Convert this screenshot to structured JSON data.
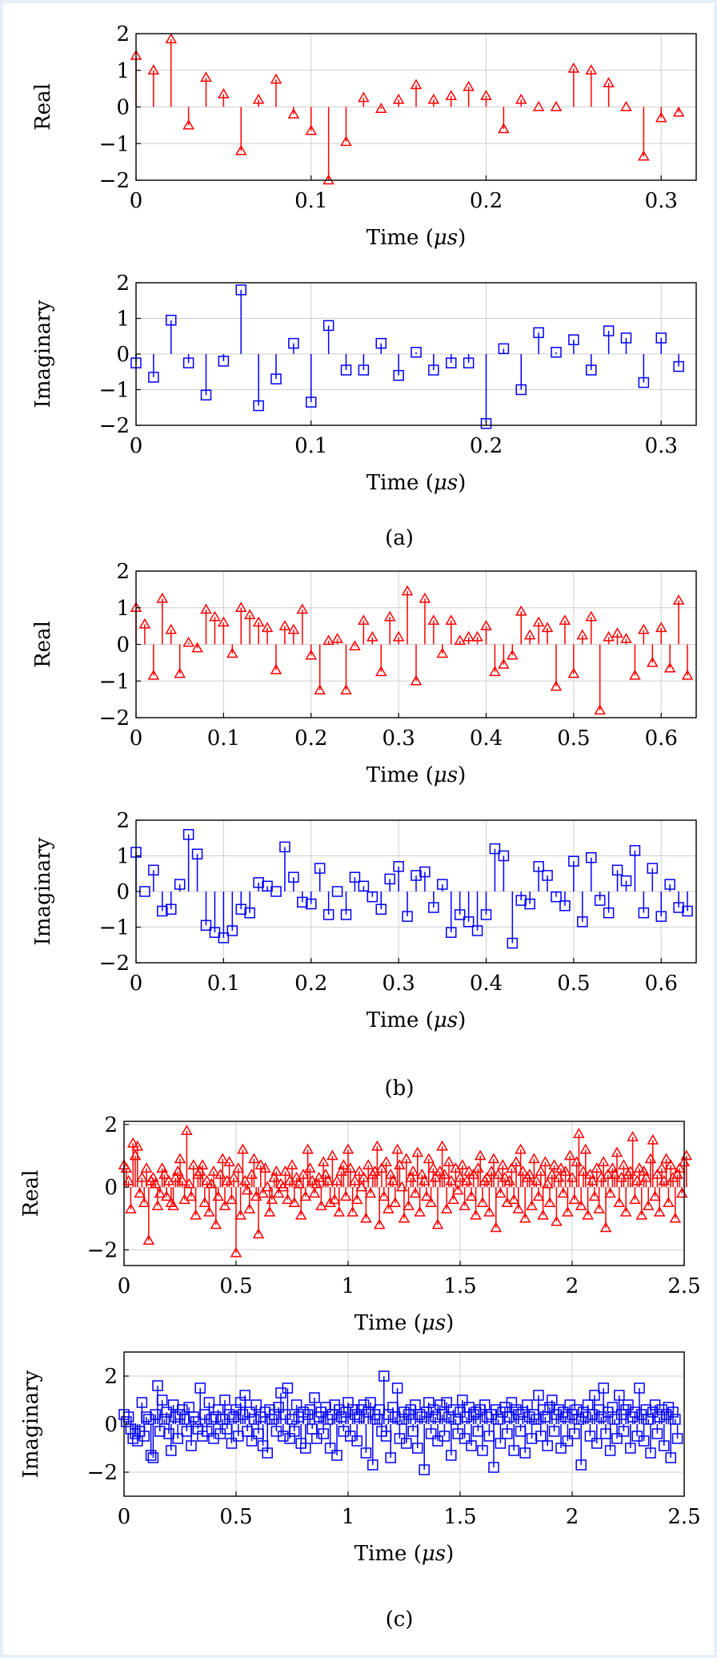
{
  "colors": {
    "real": "#ff0000",
    "imag": "#0000ff",
    "grid": "#cfcfcf"
  },
  "chart_data": [
    {
      "type": "stem",
      "panel": "a",
      "title": "",
      "xlabel": "Time (μs)",
      "xlabel_prefix": "Time (",
      "xlabel_unit": "μs",
      "xlabel_suffix": ")",
      "ylabel": "Real",
      "marker": "triangle",
      "color": "#ff0000",
      "xlim": [
        0,
        0.32
      ],
      "ylim": [
        -2,
        2
      ],
      "xticks": [
        0,
        0.1,
        0.2,
        0.3
      ],
      "xtick_labels": [
        "0",
        "0.1",
        "0.2",
        "0.3"
      ],
      "yticks": [
        -2,
        -1,
        0,
        1,
        2
      ],
      "ytick_labels": [
        "−2",
        "−1",
        "0",
        "1",
        "2"
      ],
      "dt": 0.01,
      "values": [
        1.4,
        1.0,
        1.85,
        -0.5,
        0.8,
        0.35,
        -1.2,
        0.2,
        0.75,
        -0.2,
        -0.65,
        -2.0,
        -0.95,
        0.25,
        -0.05,
        0.2,
        0.6,
        0.2,
        0.3,
        0.55,
        0.3,
        -0.6,
        0.2,
        0.0,
        0.0,
        1.05,
        1.0,
        0.65,
        0.0,
        -1.35,
        -0.3,
        -0.15
      ]
    },
    {
      "type": "stem",
      "panel": "a",
      "title": "",
      "xlabel": "Time (μs)",
      "xlabel_prefix": "Time (",
      "xlabel_unit": "μs",
      "xlabel_suffix": ")",
      "ylabel": "Imaginary",
      "marker": "square",
      "color": "#0000ff",
      "xlim": [
        0,
        0.32
      ],
      "ylim": [
        -2,
        2
      ],
      "xticks": [
        0,
        0.1,
        0.2,
        0.3
      ],
      "xtick_labels": [
        "0",
        "0.1",
        "0.2",
        "0.3"
      ],
      "yticks": [
        -2,
        -1,
        0,
        1,
        2
      ],
      "ytick_labels": [
        "−2",
        "−1",
        "0",
        "1",
        "2"
      ],
      "dt": 0.01,
      "values": [
        -0.25,
        -0.65,
        0.95,
        -0.25,
        -1.15,
        -0.2,
        1.8,
        -1.45,
        -0.7,
        0.3,
        -1.35,
        0.8,
        -0.45,
        -0.45,
        0.3,
        -0.6,
        0.05,
        -0.45,
        -0.25,
        -0.25,
        -1.95,
        0.15,
        -1.0,
        0.6,
        0.05,
        0.4,
        -0.45,
        0.65,
        0.45,
        -0.8,
        0.45,
        -0.35
      ]
    },
    {
      "type": "stem",
      "panel": "b",
      "title": "",
      "xlabel": "Time (μs)",
      "xlabel_prefix": "Time (",
      "xlabel_unit": "μs",
      "xlabel_suffix": ")",
      "ylabel": "Real",
      "marker": "triangle",
      "color": "#ff0000",
      "xlim": [
        0,
        0.64
      ],
      "ylim": [
        -2,
        2
      ],
      "xticks": [
        0,
        0.1,
        0.2,
        0.3,
        0.4,
        0.5,
        0.6
      ],
      "xtick_labels": [
        "0",
        "0.1",
        "0.2",
        "0.3",
        "0.4",
        "0.5",
        "0.6"
      ],
      "yticks": [
        -2,
        -1,
        0,
        1,
        2
      ],
      "ytick_labels": [
        "−2",
        "−1",
        "0",
        "1",
        "2"
      ],
      "dt": 0.01,
      "values": [
        1.0,
        0.55,
        -0.85,
        1.25,
        0.4,
        -0.8,
        0.05,
        -0.1,
        0.95,
        0.75,
        0.6,
        -0.25,
        1.0,
        0.8,
        0.6,
        0.45,
        -0.7,
        0.5,
        0.4,
        0.95,
        -0.3,
        -1.25,
        0.1,
        0.15,
        -1.25,
        -0.05,
        0.65,
        0.2,
        -0.75,
        0.75,
        0.2,
        1.45,
        -1.0,
        1.25,
        0.65,
        -0.25,
        0.65,
        0.1,
        0.2,
        0.2,
        0.5,
        -0.75,
        -0.55,
        -0.3,
        0.9,
        0.25,
        0.6,
        0.45,
        -1.15,
        0.65,
        -0.8,
        0.25,
        0.75,
        -1.8,
        0.2,
        0.3,
        0.15,
        -0.85,
        0.4,
        -0.5,
        0.45,
        -0.65,
        1.2,
        -0.85
      ]
    },
    {
      "type": "stem",
      "panel": "b",
      "title": "",
      "xlabel": "Time (μs)",
      "xlabel_prefix": "Time (",
      "xlabel_unit": "μs",
      "xlabel_suffix": ")",
      "ylabel": "Imaginary",
      "marker": "square",
      "color": "#0000ff",
      "xlim": [
        0,
        0.64
      ],
      "ylim": [
        -2,
        2
      ],
      "xticks": [
        0,
        0.1,
        0.2,
        0.3,
        0.4,
        0.5,
        0.6
      ],
      "xtick_labels": [
        "0",
        "0.1",
        "0.2",
        "0.3",
        "0.4",
        "0.5",
        "0.6"
      ],
      "yticks": [
        -2,
        -1,
        0,
        1,
        2
      ],
      "ytick_labels": [
        "−2",
        "−1",
        "0",
        "1",
        "2"
      ],
      "dt": 0.01,
      "values": [
        1.1,
        0.0,
        0.6,
        -0.55,
        -0.5,
        0.2,
        1.6,
        1.05,
        -0.95,
        -1.15,
        -1.3,
        -1.1,
        -0.5,
        -0.6,
        0.25,
        0.15,
        0.0,
        1.25,
        0.4,
        -0.3,
        -0.35,
        0.65,
        -0.65,
        0.0,
        -0.65,
        0.4,
        0.15,
        -0.15,
        -0.5,
        0.35,
        0.7,
        -0.7,
        0.45,
        0.55,
        -0.45,
        0.2,
        -1.15,
        -0.65,
        -0.85,
        -1.1,
        -0.65,
        1.2,
        1.0,
        -1.45,
        -0.25,
        -0.35,
        0.7,
        0.45,
        -0.15,
        -0.4,
        0.85,
        -0.85,
        0.95,
        -0.25,
        -0.6,
        0.6,
        0.3,
        1.15,
        -0.6,
        0.65,
        -0.7,
        0.2,
        -0.45,
        -0.55
      ]
    },
    {
      "type": "stem",
      "panel": "c",
      "title": "",
      "xlabel": "Time (μs)",
      "xlabel_prefix": "Time (",
      "xlabel_unit": "μs",
      "xlabel_suffix": ")",
      "ylabel": "Real",
      "marker": "triangle",
      "color": "#ff0000",
      "xlim": [
        0,
        2.5
      ],
      "ylim": [
        -2.5,
        2.1
      ],
      "xticks": [
        0,
        0.5,
        1,
        1.5,
        2,
        2.5
      ],
      "xtick_labels": [
        "0",
        "0.5",
        "1",
        "1.5",
        "2",
        "2.5"
      ],
      "yticks": [
        -2,
        0,
        2
      ],
      "ytick_labels": [
        "−2",
        "0",
        "2"
      ],
      "dt": 0.01,
      "values": [
        0.7,
        0.6,
        0.2,
        -0.7,
        1.4,
        1.0,
        1.3,
        -0.2,
        0.3,
        -0.5,
        0.6,
        -1.7,
        0.2,
        0.3,
        0.1,
        -0.6,
        -0.2,
        0.6,
        0.4,
        -0.3,
        0.2,
        -0.5,
        -0.6,
        0.3,
        0.5,
        0.9,
        0.2,
        -0.4,
        1.8,
        0.1,
        -0.3,
        0.7,
        -0.9,
        0.4,
        0.5,
        0.7,
        -0.5,
        0.2,
        -0.8,
        0.1,
        0.5,
        -1.2,
        -0.3,
        0.4,
        0.9,
        -0.6,
        0.2,
        0.8,
        -0.4,
        0.3,
        -2.1,
        0.6,
        -0.9,
        1.2,
        0.2,
        -0.1,
        -0.7,
        0.4,
        0.9,
        -0.3,
        -1.5,
        0.7,
        -0.2,
        0.6,
        0.0,
        -0.8,
        -0.4,
        0.3,
        0.5,
        -0.2,
        0.1,
        0.0,
        0.5,
        -0.4,
        0.2,
        0.7,
        -0.5,
        0.3,
        0.1,
        -0.9,
        0.4,
        -0.3,
        1.2,
        0.6,
        0.2,
        -0.2,
        0.1,
        0.3,
        -0.6,
        0.8,
        0.4,
        0.2,
        -0.5,
        1.0,
        -0.4,
        0.2,
        -0.8,
        0.5,
        0.7,
        -0.3,
        1.2,
        0.6,
        -0.8,
        0.2,
        -0.4,
        0.5,
        0.0,
        0.3,
        -1.0,
        0.7,
        -0.2,
        0.4,
        0.5,
        1.3,
        -1.2,
        0.6,
        -0.3,
        0.8,
        -0.7,
        0.4,
        0.2,
        -0.5,
        1.2,
        0.7,
        0.0,
        -1.0,
        0.9,
        -0.6,
        0.3,
        0.5,
        -0.2,
        1.1,
        -0.8,
        0.4,
        0.2,
        -0.3,
        0.9,
        -0.5,
        0.6,
        0.3,
        -1.2,
        0.5,
        1.3,
        0.4,
        -0.7,
        0.8,
        0.2,
        -0.4,
        0.6,
        -0.1,
        0.3,
        0.7,
        -0.6,
        0.2,
        0.5,
        -0.3,
        0.4,
        -0.9,
        0.6,
        1.0,
        -0.5,
        0.2,
        0.3,
        -0.8,
        0.5,
        0.9,
        -1.3,
        0.4,
        -0.2,
        0.7,
        0.3,
        -0.5,
        0.2,
        0.6,
        -0.4,
        0.8,
        -0.7,
        1.2,
        0.5,
        -1.0,
        0.3,
        0.4,
        -0.6,
        0.9,
        0.2,
        -0.3,
        0.5,
        -0.9,
        0.8,
        0.1,
        -0.5,
        0.4,
        0.7,
        -1.1,
        0.3,
        0.6,
        -0.2,
        0.5,
        -0.8,
        1.0,
        0.3,
        -0.4,
        0.8,
        1.7,
        -0.6,
        0.5,
        1.2,
        -0.9,
        0.4,
        0.2,
        -0.3,
        0.6,
        -0.7,
        0.3,
        0.8,
        -1.3,
        0.4,
        -0.2,
        0.6,
        0.4,
        1.1,
        -0.5,
        0.3,
        0.7,
        -0.8,
        0.4,
        0.5,
        1.6,
        -0.4,
        0.2,
        0.6,
        -0.9,
        0.5,
        0.3,
        -0.6,
        0.9,
        1.5,
        -0.3,
        0.4,
        -0.8,
        0.6,
        0.2,
        0.9,
        -0.5,
        0.7,
        0.3,
        -1.0,
        0.4,
        0.6,
        -0.2,
        0.8,
        1.0
      ]
    },
    {
      "type": "stem",
      "panel": "c",
      "title": "",
      "xlabel": "Time (μs)",
      "xlabel_prefix": "Time (",
      "xlabel_unit": "μs",
      "xlabel_suffix": ")",
      "ylabel": "Imaginary",
      "marker": "square",
      "color": "#0000ff",
      "xlim": [
        0,
        2.5
      ],
      "ylim": [
        -3,
        3
      ],
      "xticks": [
        0,
        0.5,
        1,
        1.5,
        2,
        2.5
      ],
      "xtick_labels": [
        "0",
        "0.5",
        "1",
        "1.5",
        "2",
        "2.5"
      ],
      "yticks": [
        -2,
        0,
        2
      ],
      "ytick_labels": [
        "−2",
        "0",
        "2"
      ],
      "dt": 0.01,
      "values": [
        0.4,
        0.1,
        0.3,
        -0.2,
        -0.6,
        -0.4,
        -0.7,
        -0.3,
        0.9,
        -0.5,
        0.3,
        0.2,
        -1.3,
        -1.4,
        0.4,
        1.6,
        -0.3,
        1.0,
        0.2,
        0.5,
        -0.4,
        -1.1,
        0.8,
        0.3,
        -0.6,
        0.4,
        0.6,
        0.2,
        -0.3,
        0.7,
        -0.9,
        0.3,
        0.1,
        -0.2,
        1.5,
        -0.5,
        0.4,
        -0.3,
        0.9,
        0.2,
        -0.6,
        0.3,
        0.6,
        -0.4,
        0.2,
        1.0,
        -0.2,
        0.4,
        -0.8,
        0.3,
        0.6,
        -0.5,
        0.9,
        0.4,
        1.2,
        -0.3,
        0.5,
        -0.7,
        0.2,
        0.8,
        -0.4,
        0.3,
        -0.9,
        0.5,
        -1.2,
        0.6,
        0.2,
        0.4,
        -0.3,
        0.7,
        1.3,
        -0.5,
        0.4,
        1.5,
        -0.6,
        0.2,
        -0.3,
        0.8,
        0.3,
        -0.8,
        0.5,
        -1.0,
        0.4,
        0.6,
        -0.2,
        1.1,
        -0.6,
        0.3,
        0.5,
        -0.4,
        0.7,
        0.2,
        -1.0,
        0.4,
        0.8,
        -1.3,
        0.6,
        0.3,
        -0.3,
        0.5,
        0.9,
        -0.5,
        0.6,
        0.4,
        -0.7,
        0.3,
        0.6,
        0.8,
        -1.2,
        0.5,
        0.9,
        -1.7,
        0.4,
        0.2,
        0.6,
        -0.3,
        2.0,
        -0.5,
        0.4,
        -1.4,
        0.7,
        0.3,
        1.5,
        -0.6,
        0.2,
        0.5,
        -0.8,
        0.4,
        0.6,
        -0.3,
        0.8,
        -1.0,
        0.4,
        0.3,
        -1.9,
        0.5,
        0.9,
        -0.4,
        0.6,
        0.3,
        -0.7,
        0.8,
        0.4,
        -0.5,
        0.9,
        0.3,
        -1.3,
        0.6,
        0.2,
        -0.4,
        0.5,
        1.0,
        -0.6,
        0.3,
        0.7,
        -0.9,
        0.4,
        0.5,
        -0.3,
        0.6,
        -1.1,
        0.8,
        0.3,
        -0.5,
        0.4,
        -1.8,
        0.6,
        0.2,
        -0.8,
        0.5,
        0.7,
        -0.4,
        0.3,
        0.9,
        -1.1,
        0.6,
        0.4,
        -0.3,
        0.5,
        -1.2,
        0.8,
        0.3,
        -0.6,
        0.4,
        0.2,
        1.2,
        -0.5,
        0.6,
        0.3,
        -0.9,
        0.7,
        1.0,
        -0.3,
        0.4,
        0.6,
        -1.0,
        0.5,
        0.3,
        -0.7,
        0.8,
        0.4,
        -0.4,
        0.6,
        0.2,
        -1.7,
        0.5,
        0.3,
        0.8,
        -0.5,
        0.4,
        1.2,
        -0.8,
        0.6,
        0.3,
        1.5,
        -0.4,
        0.5,
        -1.1,
        0.7,
        0.2,
        -0.6,
        1.2,
        0.4,
        -0.3,
        0.6,
        0.8,
        -1.0,
        0.3,
        0.5,
        -0.5,
        1.5,
        0.4,
        -0.7,
        0.6,
        0.2,
        -1.2,
        0.5,
        0.8,
        -0.4,
        0.3,
        0.6,
        -0.9,
        0.4,
        0.7,
        -1.4,
        0.5,
        0.2,
        -0.6
      ]
    }
  ],
  "captions": [
    "(a)",
    "(b)",
    "(c)"
  ]
}
